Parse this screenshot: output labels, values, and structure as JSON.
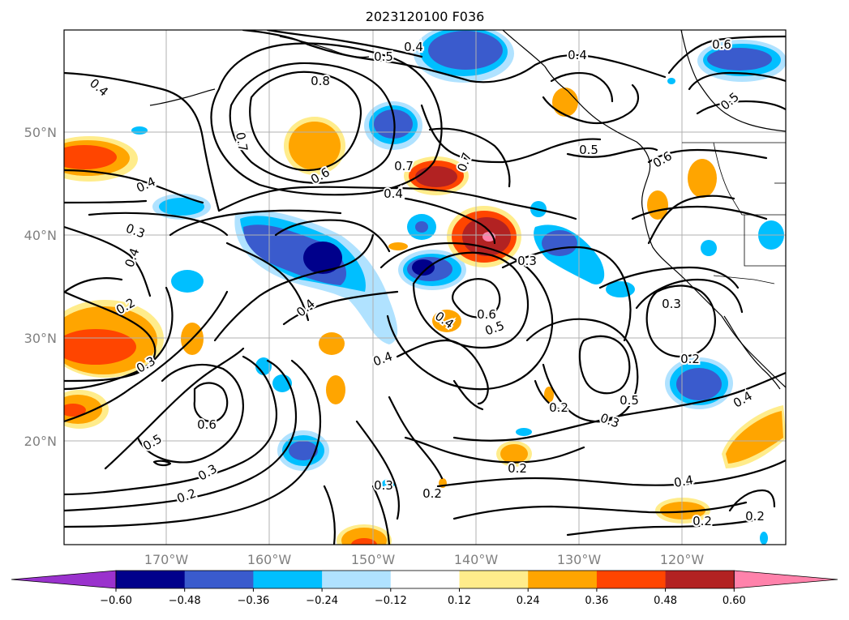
{
  "title": "2023120100 F036",
  "lat_labels": [
    "50°N",
    "40°N",
    "30°N",
    "20°N"
  ],
  "lon_labels": [
    "170°W",
    "160°W",
    "150°W",
    "140°W",
    "130°W",
    "120°W"
  ],
  "colorbar": {
    "colors": [
      "#9a32cd",
      "#00008b",
      "#3a5bcd",
      "#00bfff",
      "#b0e2ff",
      "#ffffff",
      "#ffec8b",
      "#ffa500",
      "#ff4500",
      "#b22222",
      "#ff82ab"
    ],
    "tick_labels": [
      "−0.60",
      "−0.48",
      "−0.36",
      "−0.24",
      "−0.12",
      "0.12",
      "0.24",
      "0.36",
      "0.48",
      "0.60"
    ]
  },
  "contour_labels": [
    {
      "text": "0.4"
    },
    {
      "text": "0.5"
    },
    {
      "text": "0.7"
    },
    {
      "text": "0.6"
    },
    {
      "text": "0.8"
    },
    {
      "text": "0.4"
    },
    {
      "text": "0.4"
    },
    {
      "text": "0.7"
    },
    {
      "text": "0.6"
    },
    {
      "text": "0.7"
    },
    {
      "text": "0.5"
    },
    {
      "text": "0.5"
    },
    {
      "text": "0.6"
    },
    {
      "text": "0.4"
    },
    {
      "text": "0.4"
    },
    {
      "text": "0.3"
    },
    {
      "text": "0.4"
    },
    {
      "text": "0.3"
    },
    {
      "text": "0.4"
    },
    {
      "text": "0.6"
    },
    {
      "text": "0.5"
    },
    {
      "text": "0.4"
    },
    {
      "text": "0.2"
    },
    {
      "text": "0.3"
    },
    {
      "text": "0.4"
    },
    {
      "text": "0.3"
    },
    {
      "text": "0.2"
    },
    {
      "text": "0.6"
    },
    {
      "text": "0.2"
    },
    {
      "text": "0.5"
    },
    {
      "text": "0.3"
    },
    {
      "text": "0.4"
    },
    {
      "text": "0.5"
    },
    {
      "text": "0.3"
    },
    {
      "text": "0.2"
    },
    {
      "text": "0.3"
    },
    {
      "text": "0.2"
    },
    {
      "text": "0.2"
    },
    {
      "text": "0.4"
    },
    {
      "text": "0.2"
    },
    {
      "text": "0.2"
    }
  ]
}
